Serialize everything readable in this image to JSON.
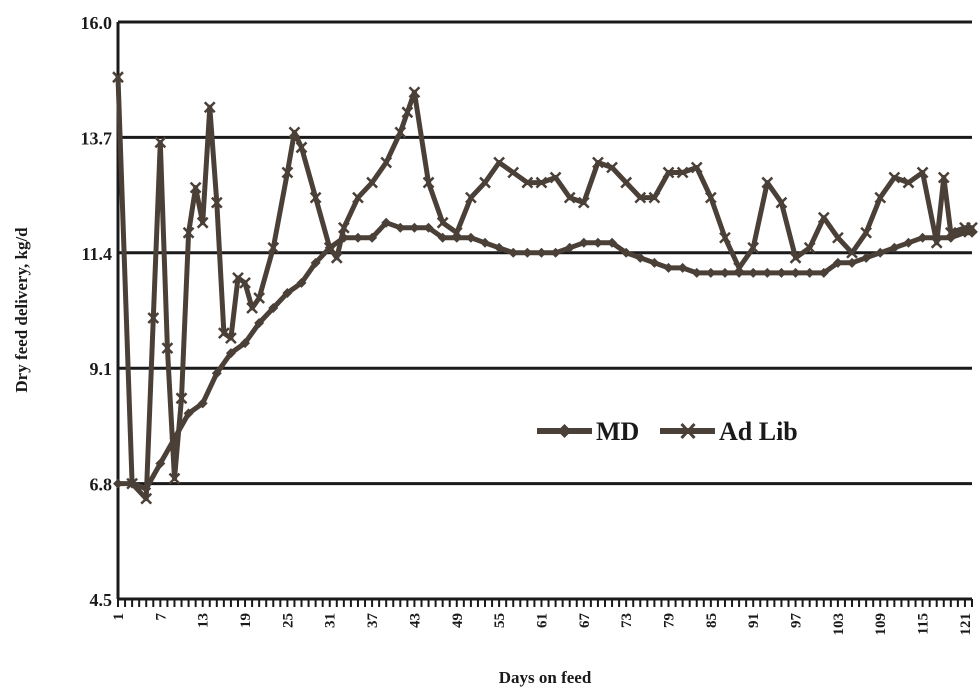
{
  "chart_data": {
    "type": "line",
    "xlabel": "Days on feed",
    "ylabel": "Dry feed delivery, kg/d",
    "xlim": [
      1,
      122
    ],
    "ylim": [
      4.5,
      16.0
    ],
    "yticks": [
      "4.5",
      "6.8",
      "9.1",
      "11.4",
      "13.7",
      "16.0"
    ],
    "xticks": [
      1,
      7,
      13,
      19,
      25,
      31,
      37,
      43,
      49,
      55,
      61,
      67,
      73,
      79,
      85,
      91,
      97,
      103,
      109,
      115,
      121
    ],
    "grid": "horizontal",
    "legend_position": "center-right",
    "colors": {
      "line": "#4a4038",
      "grid": "#1a1a1a",
      "axis": "#1a1a1a"
    },
    "series": [
      {
        "name": "MD",
        "marker": "diamond",
        "points": [
          [
            1,
            6.8
          ],
          [
            3,
            6.8
          ],
          [
            5,
            6.7
          ],
          [
            7,
            7.2
          ],
          [
            9,
            7.7
          ],
          [
            11,
            8.2
          ],
          [
            13,
            8.4
          ],
          [
            15,
            9.0
          ],
          [
            17,
            9.4
          ],
          [
            19,
            9.6
          ],
          [
            21,
            10.0
          ],
          [
            23,
            10.3
          ],
          [
            25,
            10.6
          ],
          [
            27,
            10.8
          ],
          [
            29,
            11.2
          ],
          [
            31,
            11.5
          ],
          [
            33,
            11.7
          ],
          [
            35,
            11.7
          ],
          [
            37,
            11.7
          ],
          [
            39,
            12.0
          ],
          [
            41,
            11.9
          ],
          [
            43,
            11.9
          ],
          [
            45,
            11.9
          ],
          [
            47,
            11.7
          ],
          [
            49,
            11.7
          ],
          [
            51,
            11.7
          ],
          [
            53,
            11.6
          ],
          [
            55,
            11.5
          ],
          [
            57,
            11.4
          ],
          [
            59,
            11.4
          ],
          [
            61,
            11.4
          ],
          [
            63,
            11.4
          ],
          [
            65,
            11.5
          ],
          [
            67,
            11.6
          ],
          [
            69,
            11.6
          ],
          [
            71,
            11.6
          ],
          [
            73,
            11.4
          ],
          [
            75,
            11.3
          ],
          [
            77,
            11.2
          ],
          [
            79,
            11.1
          ],
          [
            81,
            11.1
          ],
          [
            83,
            11.0
          ],
          [
            85,
            11.0
          ],
          [
            87,
            11.0
          ],
          [
            89,
            11.0
          ],
          [
            91,
            11.0
          ],
          [
            93,
            11.0
          ],
          [
            95,
            11.0
          ],
          [
            97,
            11.0
          ],
          [
            99,
            11.0
          ],
          [
            101,
            11.0
          ],
          [
            103,
            11.2
          ],
          [
            105,
            11.2
          ],
          [
            107,
            11.3
          ],
          [
            109,
            11.4
          ],
          [
            111,
            11.5
          ],
          [
            113,
            11.6
          ],
          [
            115,
            11.7
          ],
          [
            117,
            11.7
          ],
          [
            119,
            11.7
          ],
          [
            121,
            11.8
          ],
          [
            122,
            11.8
          ]
        ]
      },
      {
        "name": "Ad Lib",
        "marker": "x",
        "points": [
          [
            1,
            14.9
          ],
          [
            3,
            6.8
          ],
          [
            5,
            6.5
          ],
          [
            6,
            10.1
          ],
          [
            7,
            13.6
          ],
          [
            8,
            9.5
          ],
          [
            9,
            6.9
          ],
          [
            10,
            8.5
          ],
          [
            11,
            11.8
          ],
          [
            12,
            12.7
          ],
          [
            13,
            12.0
          ],
          [
            14,
            14.3
          ],
          [
            15,
            12.4
          ],
          [
            16,
            9.8
          ],
          [
            17,
            9.7
          ],
          [
            18,
            10.9
          ],
          [
            19,
            10.8
          ],
          [
            20,
            10.3
          ],
          [
            21,
            10.5
          ],
          [
            23,
            11.5
          ],
          [
            25,
            13.0
          ],
          [
            26,
            13.8
          ],
          [
            27,
            13.5
          ],
          [
            29,
            12.5
          ],
          [
            31,
            11.5
          ],
          [
            32,
            11.3
          ],
          [
            33,
            11.9
          ],
          [
            35,
            12.5
          ],
          [
            37,
            12.8
          ],
          [
            39,
            13.2
          ],
          [
            41,
            13.8
          ],
          [
            42,
            14.2
          ],
          [
            43,
            14.6
          ],
          [
            45,
            12.8
          ],
          [
            47,
            12.0
          ],
          [
            49,
            11.8
          ],
          [
            51,
            12.5
          ],
          [
            53,
            12.8
          ],
          [
            55,
            13.2
          ],
          [
            57,
            13.0
          ],
          [
            59,
            12.8
          ],
          [
            61,
            12.8
          ],
          [
            63,
            12.9
          ],
          [
            65,
            12.5
          ],
          [
            67,
            12.4
          ],
          [
            69,
            13.2
          ],
          [
            71,
            13.1
          ],
          [
            73,
            12.8
          ],
          [
            75,
            12.5
          ],
          [
            77,
            12.5
          ],
          [
            79,
            13.0
          ],
          [
            81,
            13.0
          ],
          [
            83,
            13.1
          ],
          [
            85,
            12.5
          ],
          [
            87,
            11.7
          ],
          [
            89,
            11.1
          ],
          [
            91,
            11.5
          ],
          [
            93,
            12.8
          ],
          [
            95,
            12.4
          ],
          [
            97,
            11.3
          ],
          [
            99,
            11.5
          ],
          [
            101,
            12.1
          ],
          [
            103,
            11.7
          ],
          [
            105,
            11.4
          ],
          [
            107,
            11.8
          ],
          [
            109,
            12.5
          ],
          [
            111,
            12.9
          ],
          [
            113,
            12.8
          ],
          [
            115,
            13.0
          ],
          [
            117,
            11.6
          ],
          [
            118,
            12.9
          ],
          [
            119,
            11.8
          ],
          [
            121,
            11.9
          ],
          [
            122,
            11.9
          ]
        ]
      }
    ]
  }
}
